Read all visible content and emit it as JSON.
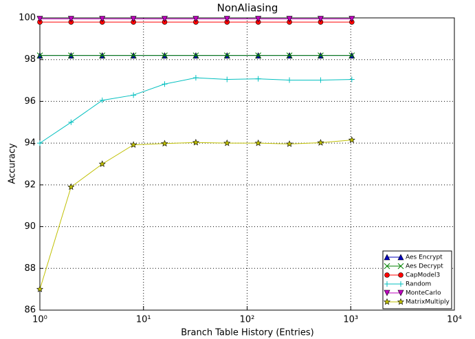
{
  "chart_data": {
    "type": "line",
    "title": "NonAliasing",
    "x_label": "Branch Table History (Entries)",
    "y_label": "Accuracy",
    "x": [
      1,
      2,
      4,
      8,
      16,
      32,
      64,
      128,
      256,
      512,
      1024
    ],
    "xlog": true,
    "grid": true,
    "legend": "lower right",
    "xlim": [
      1,
      10000
    ],
    "xticks": [
      {
        "value": 1,
        "label": "10⁰"
      },
      {
        "value": 10,
        "label": "10¹"
      },
      {
        "value": 100,
        "label": "10²"
      },
      {
        "value": 1000,
        "label": "10³"
      },
      {
        "value": 10000,
        "label": "10⁴"
      }
    ],
    "ylim": [
      86,
      100
    ],
    "yticks": [
      86,
      88,
      90,
      92,
      94,
      96,
      98,
      100
    ],
    "series": [
      {
        "name": "Aes Encrypt",
        "color": "#0000bf",
        "marker": "triangle-up",
        "values": [
          98.2,
          98.2,
          98.2,
          98.2,
          98.2,
          98.2,
          98.2,
          98.2,
          98.2,
          98.2,
          98.2
        ]
      },
      {
        "name": "Aes Decrypt",
        "color": "#008000",
        "marker": "x",
        "values": [
          98.2,
          98.2,
          98.2,
          98.2,
          98.2,
          98.2,
          98.2,
          98.2,
          98.2,
          98.2,
          98.2
        ]
      },
      {
        "name": "CapModel3",
        "color": "#ff0000",
        "marker": "circle",
        "values": [
          99.8,
          99.8,
          99.8,
          99.8,
          99.8,
          99.8,
          99.8,
          99.8,
          99.8,
          99.8,
          99.8
        ]
      },
      {
        "name": "Random",
        "color": "#00bfbf",
        "marker": "plus",
        "values": [
          94.0,
          95.0,
          96.05,
          96.3,
          96.83,
          97.13,
          97.05,
          97.08,
          97.02,
          97.02,
          97.05
        ]
      },
      {
        "name": "MonteCarlo",
        "color": "#bf00bf",
        "marker": "triangle-down",
        "values": [
          99.95,
          99.95,
          99.95,
          99.95,
          99.95,
          99.95,
          99.95,
          99.95,
          99.95,
          99.95,
          99.95
        ]
      },
      {
        "name": "MatrixMultiply",
        "color": "#bfbf00",
        "marker": "star",
        "values": [
          87.0,
          91.9,
          93.0,
          93.92,
          93.98,
          94.03,
          94.0,
          94.0,
          93.96,
          94.02,
          94.15
        ]
      }
    ]
  }
}
